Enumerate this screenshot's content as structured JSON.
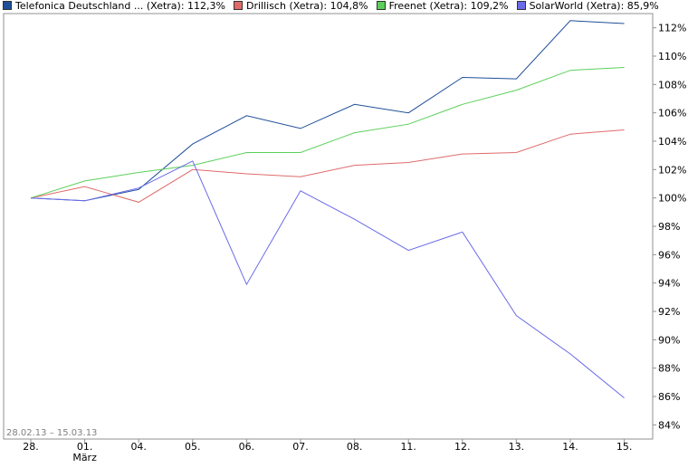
{
  "legend": [
    {
      "label": "Telefonica Deutschland ... (Xetra): 112,3%",
      "color": "#1f4e9a"
    },
    {
      "label": "Drillisch (Xetra): 104,8%",
      "color": "#e06a6a"
    },
    {
      "label": "Freenet (Xetra): 109,2%",
      "color": "#5ad05a"
    },
    {
      "label": "SolarWorld (Xetra): 85,9%",
      "color": "#6a6ae8"
    }
  ],
  "date_range": "28.02.13 – 15.03.13",
  "chart_data": {
    "type": "line",
    "categories": [
      "28.",
      "01.",
      "04.",
      "05.",
      "06.",
      "07.",
      "08.",
      "11.",
      "12.",
      "13.",
      "14.",
      "15."
    ],
    "category_sublabels": {
      "01.": "März"
    },
    "ylim": [
      83,
      113
    ],
    "yticks": [
      84,
      86,
      88,
      90,
      92,
      94,
      96,
      98,
      100,
      102,
      104,
      106,
      108,
      110,
      112
    ],
    "ytick_labels": [
      "84%",
      "86%",
      "88%",
      "90%",
      "92%",
      "94%",
      "96%",
      "98%",
      "100%",
      "102%",
      "104%",
      "106%",
      "108%",
      "110%",
      "112%"
    ],
    "grid": false,
    "series": [
      {
        "name": "Telefonica Deutschland ... (Xetra)",
        "color": "#1f4e9a",
        "values": [
          100.0,
          99.8,
          100.6,
          103.8,
          105.8,
          104.9,
          106.6,
          106.0,
          108.5,
          108.4,
          112.5,
          112.3
        ]
      },
      {
        "name": "Drillisch (Xetra)",
        "color": "#e06a6a",
        "values": [
          100.0,
          100.8,
          99.7,
          102.0,
          101.7,
          101.5,
          102.3,
          102.5,
          103.1,
          103.2,
          104.5,
          104.8
        ]
      },
      {
        "name": "Freenet (Xetra)",
        "color": "#5ad05a",
        "values": [
          100.0,
          101.2,
          101.8,
          102.3,
          103.2,
          103.2,
          104.6,
          105.2,
          106.6,
          107.6,
          109.0,
          109.2
        ]
      },
      {
        "name": "SolarWorld (Xetra)",
        "color": "#6a6ae8",
        "values": [
          100.0,
          99.8,
          100.7,
          102.6,
          93.9,
          100.5,
          98.5,
          96.3,
          97.6,
          91.7,
          89.0,
          85.9
        ]
      }
    ]
  }
}
